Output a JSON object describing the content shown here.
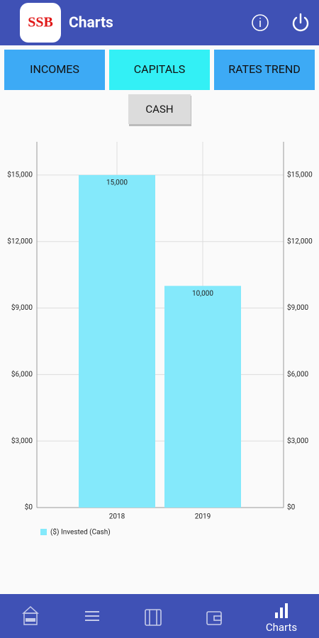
{
  "app_bar": {
    "logo": "SSB",
    "title": "Charts"
  },
  "tabs": [
    "INCOMES",
    "CAPITALS",
    "RATES TREND"
  ],
  "sub_tab": "CASH",
  "chart_data": {
    "type": "bar",
    "categories": [
      "2018",
      "2019"
    ],
    "series": [
      {
        "name": "($) Invested (Cash)",
        "color": "#84e9fb",
        "values": [
          15000,
          10000
        ],
        "value_labels": [
          "15,000",
          "10,000"
        ]
      }
    ],
    "ylim": [
      0,
      16500
    ],
    "yticks": [
      {
        "value": 0,
        "label": "$0"
      },
      {
        "value": 3000,
        "label": "$3,000"
      },
      {
        "value": 6000,
        "label": "$6,000"
      },
      {
        "value": 9000,
        "label": "$9,000"
      },
      {
        "value": 12000,
        "label": "$12,000"
      },
      {
        "value": 15000,
        "label": "$15,000"
      }
    ],
    "grid": true
  },
  "bottom_nav": {
    "active_label": "Charts"
  }
}
